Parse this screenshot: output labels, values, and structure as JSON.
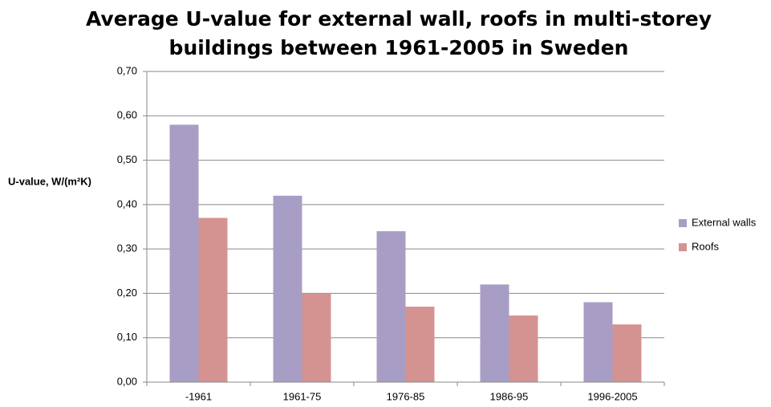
{
  "chart_data": {
    "type": "bar",
    "title": [
      "Average U-value for external wall, roofs in multi-storey",
      "buildings between 1961-2005 in Sweden"
    ],
    "y_label": "U-value, W/(m²K)",
    "categories": [
      "-1961",
      "1961-75",
      "1976-85",
      "1986-95",
      "1996-2005"
    ],
    "series": [
      {
        "name": "External walls",
        "color": "#a89ec5",
        "values": [
          0.58,
          0.42,
          0.34,
          0.22,
          0.18
        ]
      },
      {
        "name": "Roofs",
        "color": "#d49391",
        "values": [
          0.37,
          0.2,
          0.17,
          0.15,
          0.13
        ]
      }
    ],
    "ylim": [
      0,
      0.7
    ],
    "yticks": [
      {
        "value": 0,
        "label": "0,00"
      },
      {
        "value": 0.1,
        "label": "0,10"
      },
      {
        "value": 0.2,
        "label": "0,20"
      },
      {
        "value": 0.3,
        "label": "0,30"
      },
      {
        "value": 0.4,
        "label": "0,40"
      },
      {
        "value": 0.5,
        "label": "0,50"
      },
      {
        "value": 0.6,
        "label": "0,60"
      },
      {
        "value": 0.7,
        "label": "0,70"
      }
    ],
    "grid": true,
    "legend": "right"
  }
}
